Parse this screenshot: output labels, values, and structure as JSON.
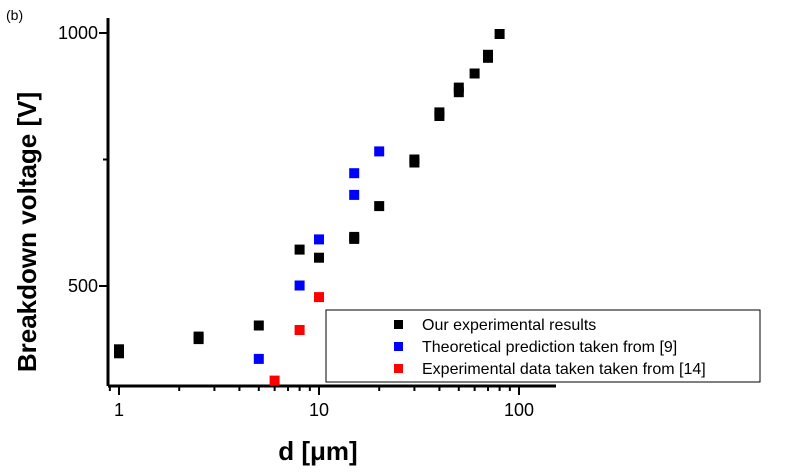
{
  "panel_label": "(b)",
  "chart_data": {
    "type": "scatter",
    "xlabel": "d [μm]",
    "ylabel": "Breakdown voltage [V]",
    "x_scale": "log",
    "xlim": [
      0.9,
      150
    ],
    "ylim": [
      302,
      1030
    ],
    "x_ticks": [
      1,
      10,
      100
    ],
    "x_tick_labels": [
      "1",
      "10",
      "100"
    ],
    "y_ticks": [
      500,
      1000
    ],
    "y_tick_labels": [
      "500",
      "1000"
    ],
    "grid": false,
    "legend_position": "bottom-right",
    "series": [
      {
        "name": "Our experimental results",
        "color": "#000000",
        "marker": "square",
        "points": [
          [
            1,
            375
          ],
          [
            1,
            367
          ],
          [
            2.5,
            400
          ],
          [
            2.5,
            395
          ],
          [
            5,
            422
          ],
          [
            8,
            572
          ],
          [
            10,
            556
          ],
          [
            15,
            597
          ],
          [
            15,
            593
          ],
          [
            20,
            658
          ],
          [
            30,
            750
          ],
          [
            30,
            744
          ],
          [
            40,
            843
          ],
          [
            40,
            836
          ],
          [
            50,
            892
          ],
          [
            50,
            883
          ],
          [
            60,
            920
          ],
          [
            70,
            957
          ],
          [
            70,
            951
          ],
          [
            80,
            998
          ]
        ]
      },
      {
        "name": "Theoretical prediction taken from [9]",
        "color": "#0000ff",
        "marker": "square",
        "points": [
          [
            5,
            356
          ],
          [
            8,
            501
          ],
          [
            10,
            592
          ],
          [
            15,
            680
          ],
          [
            15,
            723
          ],
          [
            20,
            766
          ]
        ]
      },
      {
        "name": "Experimental data taken taken from [14]",
        "color": "#ff0000",
        "marker": "square",
        "points": [
          [
            6,
            313
          ],
          [
            8,
            413
          ],
          [
            10,
            478
          ]
        ]
      }
    ]
  }
}
